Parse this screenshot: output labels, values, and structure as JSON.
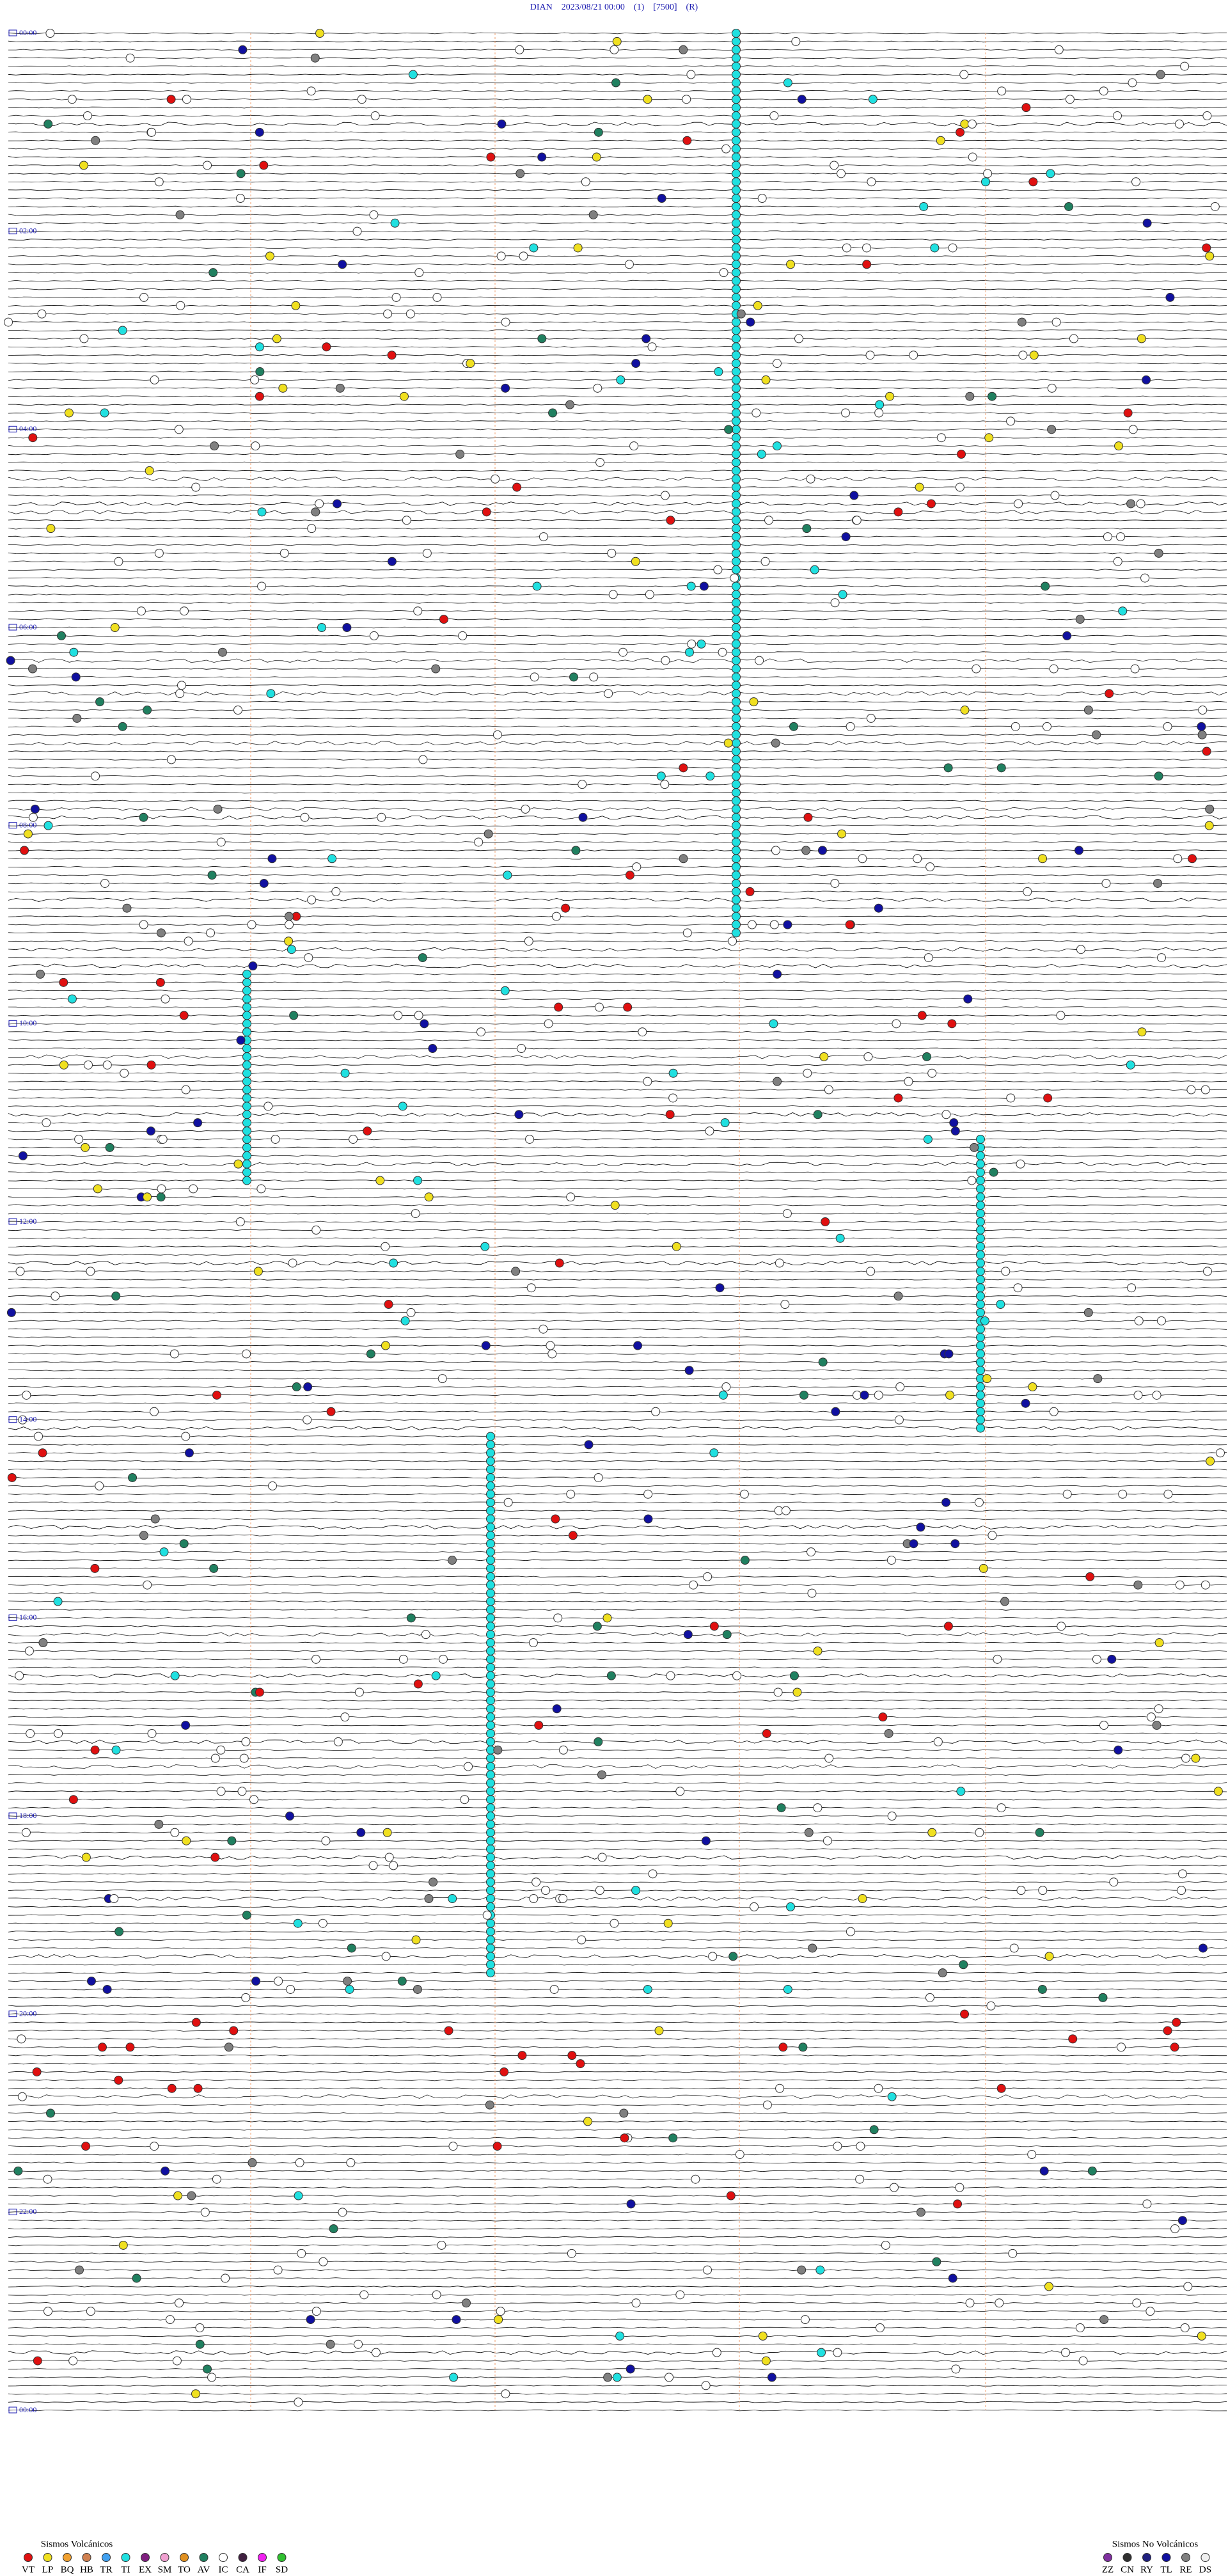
{
  "header": {
    "title": "DIAN    2023/08/21 00:00    (1)    [7500]    (R)"
  },
  "time_labels": [
    "00:00",
    "02:00",
    "04:00",
    "06:00",
    "08:00",
    "10:00",
    "12:00",
    "14:00",
    "16:00",
    "18:00",
    "20:00",
    "22:00",
    "00:00"
  ],
  "legend": {
    "volcanic": {
      "title": "Sismos Volcánicos",
      "items": [
        {
          "code": "VT",
          "color": "#e01010"
        },
        {
          "code": "LP",
          "color": "#f0e020"
        },
        {
          "code": "BQ",
          "color": "#f0a030"
        },
        {
          "code": "HB",
          "color": "#d08050"
        },
        {
          "code": "TR",
          "color": "#40a0f0"
        },
        {
          "code": "TI",
          "color": "#20e0e0"
        },
        {
          "code": "EX",
          "color": "#802080"
        },
        {
          "code": "SM",
          "color": "#f0a0d0"
        },
        {
          "code": "TO",
          "color": "#e09020"
        },
        {
          "code": "AV",
          "color": "#208060"
        },
        {
          "code": "IC",
          "color": "#ffffff"
        },
        {
          "code": "CA",
          "color": "#402040"
        },
        {
          "code": "IF",
          "color": "#f020f0"
        },
        {
          "code": "SD",
          "color": "#30c030"
        }
      ]
    },
    "non_volcanic": {
      "title": "Sismos No Volcánicos",
      "items": [
        {
          "code": "ZZ",
          "color": "#8030a0"
        },
        {
          "code": "CN",
          "color": "#303030"
        },
        {
          "code": "RY",
          "color": "#202080"
        },
        {
          "code": "TL",
          "color": "#1010a0"
        },
        {
          "code": "RE",
          "color": "#808080"
        },
        {
          "code": "DS",
          "color": "#f0f0f0"
        }
      ]
    }
  }
}
